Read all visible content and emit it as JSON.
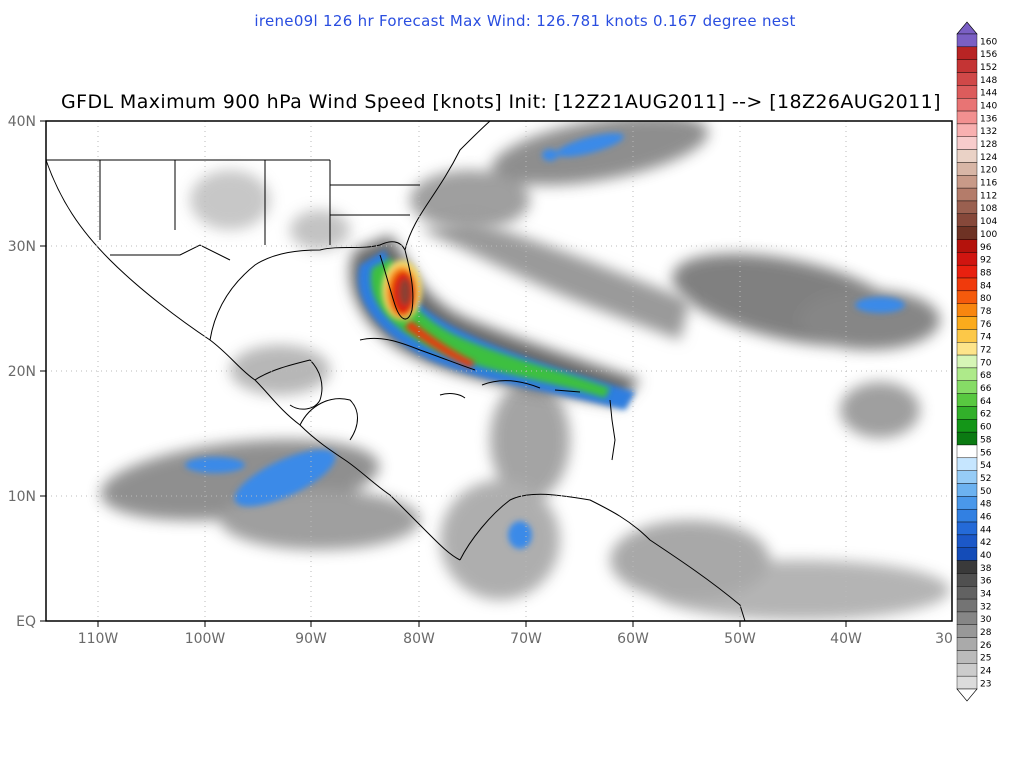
{
  "header": {
    "subtitle": "irene09l 126 hr Forecast Max Wind: 126.781 knots 0.167 degree nest",
    "title": "GFDL Maximum 900 hPa Wind Speed [knots] Init: [12Z21AUG2011] --> [18Z26AUG2011]"
  },
  "map": {
    "lon_range": [
      -115,
      -30
    ],
    "lat_range": [
      0,
      40
    ],
    "x_ticks": [
      "110W",
      "100W",
      "90W",
      "80W",
      "70W",
      "60W",
      "50W",
      "40W",
      "30"
    ],
    "y_ticks": [
      "EQ",
      "10N",
      "20N",
      "30N",
      "40N"
    ]
  },
  "legend": {
    "levels": [
      "160",
      "156",
      "152",
      "148",
      "144",
      "140",
      "136",
      "132",
      "128",
      "124",
      "120",
      "116",
      "112",
      "108",
      "104",
      "100",
      "96",
      "92",
      "88",
      "84",
      "80",
      "78",
      "76",
      "74",
      "72",
      "70",
      "68",
      "66",
      "64",
      "62",
      "60",
      "58",
      "56",
      "54",
      "52",
      "50",
      "48",
      "46",
      "44",
      "42",
      "40",
      "38",
      "36",
      "34",
      "32",
      "30",
      "28",
      "26",
      "25",
      "24",
      "23"
    ],
    "colors": [
      "#7a5fc4",
      "#b82424",
      "#c43434",
      "#d04848",
      "#dc5c5c",
      "#e87474",
      "#f29090",
      "#f8b0b0",
      "#f7cccc",
      "#ead2c6",
      "#d8b6a6",
      "#c89a88",
      "#b47c6a",
      "#9a6050",
      "#86483a",
      "#6e3224",
      "#b4120c",
      "#d01510",
      "#e8200f",
      "#f03a0c",
      "#f55a0c",
      "#f8860f",
      "#fbab1c",
      "#fcc848",
      "#fde48a",
      "#d6f5b6",
      "#aeea8a",
      "#86dc66",
      "#58c840",
      "#32b02a",
      "#149618",
      "#0b7a12",
      "#ffffff",
      "#c6e6ff",
      "#96ccf6",
      "#6cb2f0",
      "#4a98ea",
      "#3280e2",
      "#246ad8",
      "#1c58c8",
      "#144cb8",
      "#3a3a3a",
      "#505050",
      "#626262",
      "#747474",
      "#868686",
      "#989898",
      "#aaaaaa",
      "#bbbbbb",
      "#cccccc",
      "#dcdcdc"
    ]
  }
}
